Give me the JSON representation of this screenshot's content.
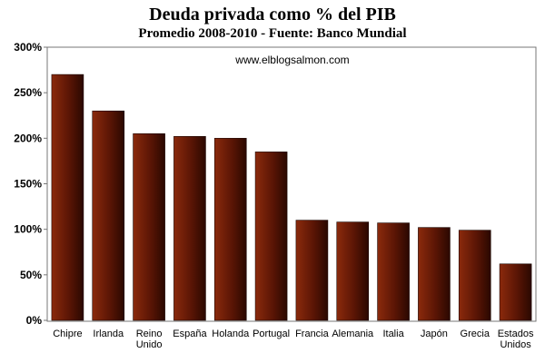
{
  "chart_data": {
    "type": "bar",
    "title": "Deuda privada como % del PIB",
    "subtitle": "Promedio 2008-2010 - Fuente: Banco Mundial",
    "watermark": "www.elblogsalmon.com",
    "categories": [
      "Chipre",
      "Irlanda",
      "Reino Unido",
      "España",
      "Holanda",
      "Portugal",
      "Francia",
      "Alemania",
      "Italia",
      "Japón",
      "Grecia",
      "Estados Unidos"
    ],
    "values": [
      270,
      230,
      205,
      202,
      200,
      185,
      110,
      108,
      107,
      102,
      99,
      62
    ],
    "ylim": [
      0,
      300
    ],
    "yticks": [
      "0%",
      "50%",
      "100%",
      "150%",
      "200%",
      "250%",
      "300%"
    ],
    "grid": false,
    "legend": "none",
    "colors": {
      "bar": "#8b2a0c",
      "bar_dark": "#2a0800",
      "frame": "#777777"
    }
  }
}
